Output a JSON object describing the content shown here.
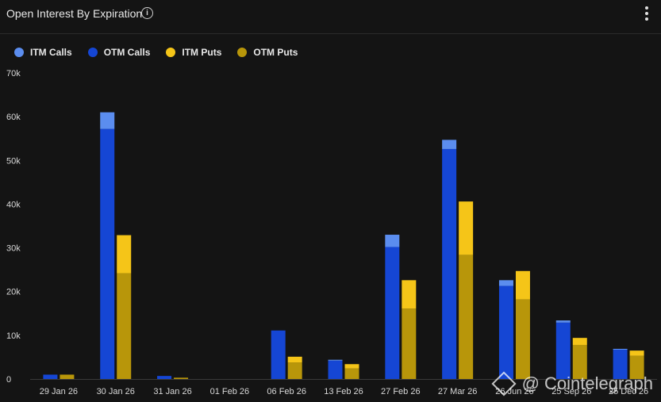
{
  "header": {
    "title": "Open Interest By Expiration",
    "info_icon": "info-icon",
    "menu_icon": "more-vertical-icon"
  },
  "legend": [
    {
      "label": "ITM Calls",
      "color": "#5b8def"
    },
    {
      "label": "OTM Calls",
      "color": "#1546d4"
    },
    {
      "label": "ITM Puts",
      "color": "#f5c518"
    },
    {
      "label": "OTM Puts",
      "color": "#b8960a"
    }
  ],
  "watermark": {
    "text": "@ Cointelegraph"
  },
  "chart_data": {
    "type": "bar",
    "title": "Open Interest By Expiration",
    "xlabel": "",
    "ylabel": "",
    "ylim": [
      0,
      70000
    ],
    "yticks": [
      0,
      10000,
      20000,
      30000,
      40000,
      50000,
      60000,
      70000
    ],
    "ytick_labels": [
      "0",
      "10k",
      "20k",
      "30k",
      "40k",
      "50k",
      "60k",
      "70k"
    ],
    "categories": [
      "29 Jan 26",
      "30 Jan 26",
      "31 Jan 26",
      "01 Feb 26",
      "06 Feb 26",
      "13 Feb 26",
      "27 Feb 26",
      "27 Mar 26",
      "26 Jun 26",
      "25 Sep 26",
      "25 Dec 26"
    ],
    "grid": false,
    "legend_position": "top-left",
    "stacks": [
      {
        "name": "Calls",
        "segments": [
          "OTM Calls",
          "ITM Calls"
        ]
      },
      {
        "name": "Puts",
        "segments": [
          "OTM Puts",
          "ITM Puts"
        ]
      }
    ],
    "series": [
      {
        "name": "ITM Calls",
        "color": "#5b8def",
        "values": [
          0,
          3800,
          0,
          0,
          0,
          200,
          2800,
          2100,
          1300,
          500,
          200
        ]
      },
      {
        "name": "OTM Calls",
        "color": "#1546d4",
        "values": [
          1000,
          57200,
          700,
          0,
          11100,
          4200,
          30200,
          52600,
          21300,
          12900,
          6700
        ]
      },
      {
        "name": "ITM Puts",
        "color": "#f5c518",
        "values": [
          0,
          8700,
          0,
          0,
          1300,
          1000,
          6500,
          12200,
          6500,
          1600,
          1200
        ]
      },
      {
        "name": "OTM Puts",
        "color": "#b8960a",
        "values": [
          1000,
          24200,
          300,
          0,
          3800,
          2400,
          16100,
          28400,
          18200,
          7800,
          5300
        ]
      }
    ]
  }
}
